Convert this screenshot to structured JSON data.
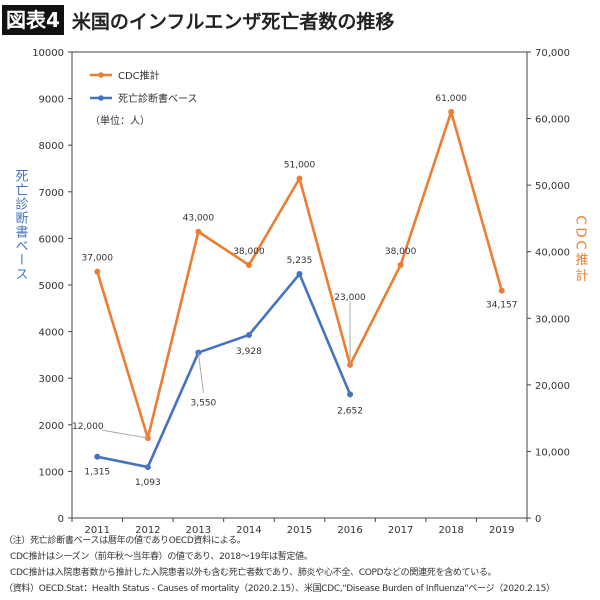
{
  "header": {
    "tag": "図表4",
    "title": "米国のインフルエンザ死亡者数の推移"
  },
  "chart_data": {
    "type": "line",
    "categories": [
      "2011",
      "2012",
      "2013",
      "2014",
      "2015",
      "2016",
      "2017",
      "2018",
      "2019"
    ],
    "y_left": {
      "label": "死亡診断書ベース",
      "range": [
        0,
        10000
      ],
      "ticks": [
        "0",
        "1000",
        "2000",
        "3000",
        "4000",
        "5000",
        "6000",
        "7000",
        "8000",
        "9000",
        "10000"
      ]
    },
    "y_right": {
      "label": "CDC推計",
      "range": [
        0,
        70000
      ],
      "ticks": [
        "0",
        "10,000",
        "20,000",
        "30,000",
        "40,000",
        "50,000",
        "60,000",
        "70,000"
      ]
    },
    "unit_note": "（単位：人）",
    "grid": false,
    "legend_placement": "top-left",
    "series": [
      {
        "name": "CDC推計",
        "axis": "right",
        "color": "#ED7D31",
        "values": [
          37000,
          12000,
          43000,
          38000,
          51000,
          23000,
          38000,
          61000,
          34157
        ],
        "labels": [
          "37,000",
          "12,000",
          "43,000",
          "38,000",
          "51,000",
          "23,000",
          "38,000",
          "61,000",
          "34,157"
        ]
      },
      {
        "name": "死亡診断書ベース",
        "axis": "left",
        "color": "#4472C4",
        "values": [
          1315,
          1093,
          3550,
          3928,
          5235,
          2652,
          null,
          null,
          null
        ],
        "labels": [
          "1,315",
          "1,093",
          "3,550",
          "3,928",
          "5,235",
          "2,652",
          null,
          null,
          null
        ]
      }
    ]
  },
  "notes": [
    "（注）死亡診断書ベースは暦年の値でありOECD資料による。",
    "CDC推計はシーズン（前年秋～当年春）の値であり、2018～19年は暫定値。",
    "CDC推計は入院患者数から推計した入院患者以外も含む死亡者数であり、肺炎や心不全、COPDなどの関連死を含めている。",
    "（資料）OECD.Stat：Health Status - Causes of mortality（2020.2.15）、米国CDC,\"Disease Burden of Influenza\"ページ（2020.2.15）"
  ]
}
